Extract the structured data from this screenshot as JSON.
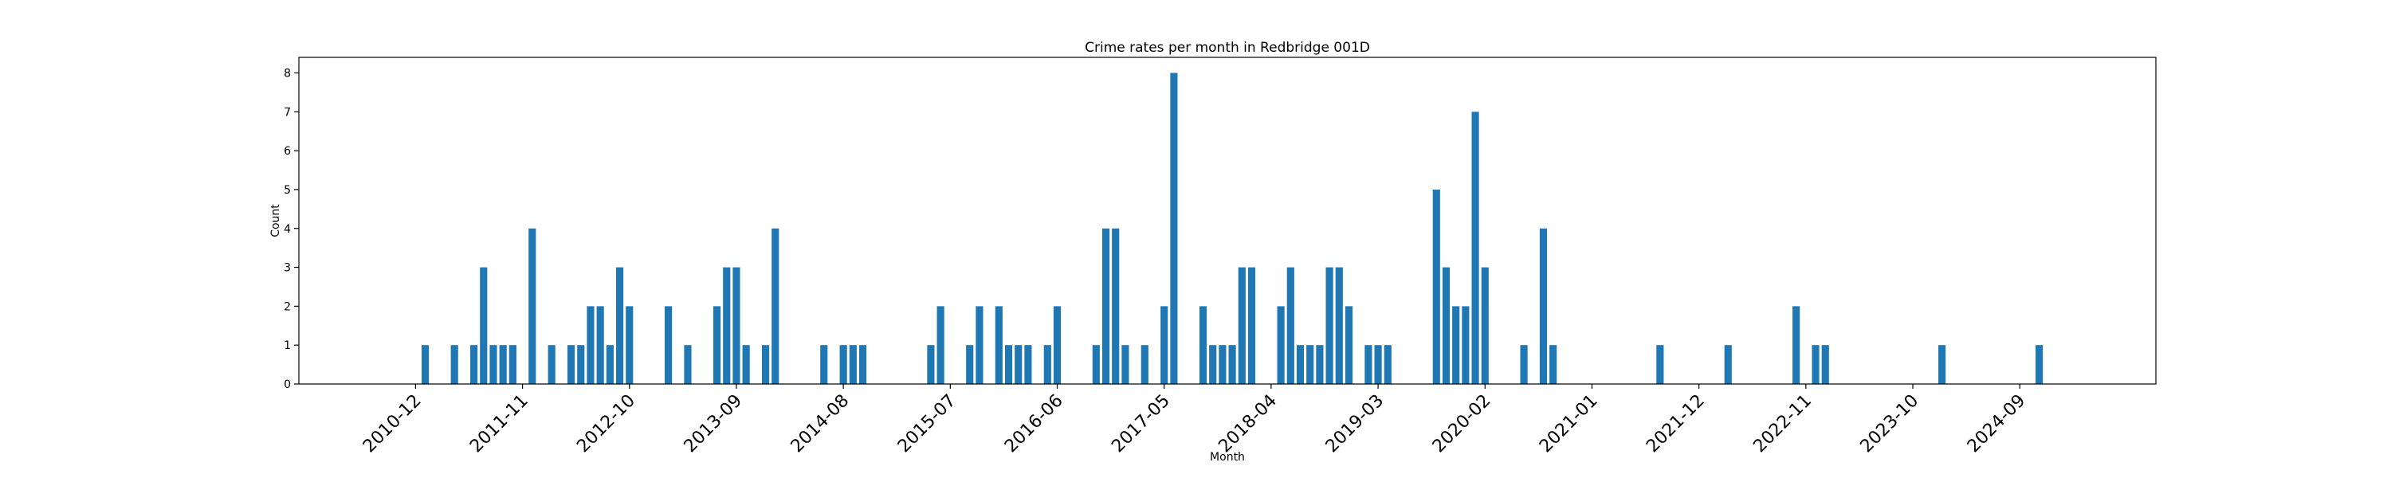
{
  "chart_data": {
    "type": "bar",
    "title": "Crime rates per month in Redbridge 001D",
    "xlabel": "Month",
    "ylabel": "Count",
    "ylim": [
      0,
      8.4
    ],
    "yticks": [
      0,
      1,
      2,
      3,
      4,
      5,
      6,
      7,
      8
    ],
    "xticks": [
      "2010-12",
      "2011-11",
      "2012-10",
      "2013-09",
      "2014-08",
      "2015-07",
      "2016-06",
      "2017-05",
      "2018-04",
      "2019-03",
      "2020-02",
      "2021-01",
      "2021-12",
      "2022-11",
      "2023-10",
      "2024-09"
    ],
    "x": [
      "2011-01",
      "2011-04",
      "2011-06",
      "2011-07",
      "2011-08",
      "2011-09",
      "2011-10",
      "2011-12",
      "2012-02",
      "2012-04",
      "2012-05",
      "2012-06",
      "2012-07",
      "2012-08",
      "2012-09",
      "2012-10",
      "2013-02",
      "2013-04",
      "2013-07",
      "2013-08",
      "2013-09",
      "2013-10",
      "2013-12",
      "2014-01",
      "2014-06",
      "2014-08",
      "2014-09",
      "2014-10",
      "2015-05",
      "2015-06",
      "2015-09",
      "2015-10",
      "2015-12",
      "2016-01",
      "2016-02",
      "2016-03",
      "2016-05",
      "2016-06",
      "2016-10",
      "2016-11",
      "2016-12",
      "2017-01",
      "2017-03",
      "2017-05",
      "2017-06",
      "2017-09",
      "2017-10",
      "2017-11",
      "2017-12",
      "2018-01",
      "2018-02",
      "2018-05",
      "2018-06",
      "2018-07",
      "2018-08",
      "2018-09",
      "2018-10",
      "2018-11",
      "2018-12",
      "2019-02",
      "2019-03",
      "2019-04",
      "2019-09",
      "2019-10",
      "2019-11",
      "2019-12",
      "2020-01",
      "2020-02",
      "2020-06",
      "2020-08",
      "2020-09",
      "2021-08",
      "2022-03",
      "2022-10",
      "2022-12",
      "2023-01",
      "2024-01",
      "2024-11"
    ],
    "values": [
      1,
      1,
      1,
      3,
      1,
      1,
      1,
      4,
      1,
      1,
      1,
      2,
      2,
      1,
      3,
      2,
      2,
      1,
      2,
      3,
      3,
      1,
      1,
      4,
      1,
      1,
      1,
      1,
      1,
      2,
      1,
      2,
      2,
      1,
      1,
      1,
      1,
      2,
      1,
      4,
      4,
      1,
      1,
      2,
      8,
      2,
      1,
      1,
      1,
      3,
      3,
      2,
      3,
      1,
      1,
      1,
      3,
      3,
      2,
      1,
      1,
      1,
      5,
      3,
      2,
      2,
      7,
      3,
      1,
      4,
      1,
      1,
      1,
      2,
      1,
      1,
      1,
      1
    ],
    "grid": false,
    "legend": "none"
  }
}
